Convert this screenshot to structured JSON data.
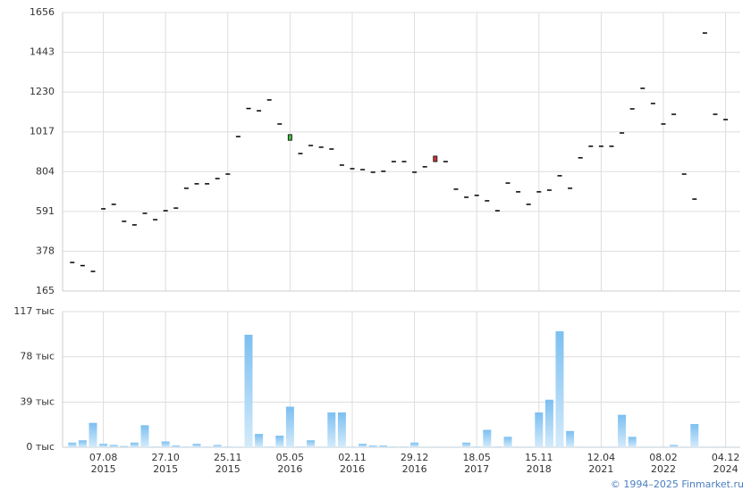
{
  "chart_data": [
    {
      "type": "candlestick",
      "open": [
        318,
        301,
        270,
        605,
        629,
        538,
        519,
        581,
        547,
        595,
        609,
        715,
        739,
        739,
        767,
        791,
        992,
        1142,
        1130,
        1188,
        1059,
        972,
        901,
        944,
        935,
        925,
        839,
        820,
        815,
        801,
        806,
        858,
        858,
        801,
        830,
        887,
        858,
        710,
        667,
        677,
        648,
        595,
        743,
        696,
        629,
        696,
        705,
        782,
        715,
        878,
        940,
        940,
        940,
        1011,
        1140,
        1250,
        1169,
        1059,
        1111,
        791,
        657,
        1546,
        1111,
        1083
      ],
      "close": [
        318,
        301,
        270,
        605,
        629,
        538,
        519,
        581,
        547,
        595,
        609,
        715,
        739,
        739,
        767,
        791,
        992,
        1142,
        1130,
        1188,
        1059,
        1002,
        901,
        944,
        935,
        925,
        839,
        820,
        815,
        801,
        806,
        858,
        858,
        801,
        830,
        858,
        858,
        710,
        667,
        677,
        648,
        595,
        743,
        696,
        629,
        696,
        705,
        782,
        715,
        878,
        940,
        940,
        940,
        1011,
        1140,
        1250,
        1169,
        1059,
        1111,
        791,
        657,
        1546,
        1111,
        1083
      ],
      "ylim": [
        165,
        1656
      ],
      "yticks": [
        165,
        378,
        591,
        804,
        1017,
        1230,
        1443,
        1656
      ],
      "grid": true
    },
    {
      "type": "bar",
      "categories": [
        null,
        null,
        null,
        "07.08\n2015",
        null,
        null,
        null,
        null,
        null,
        "27.10\n2015",
        null,
        null,
        null,
        null,
        null,
        "25.11\n2015",
        null,
        null,
        null,
        null,
        null,
        "05.05\n2016",
        null,
        null,
        null,
        null,
        null,
        "02.11\n2016",
        null,
        null,
        null,
        null,
        null,
        "29.12\n2016",
        null,
        null,
        null,
        null,
        null,
        "18.05\n2017",
        null,
        null,
        null,
        null,
        null,
        "15.11\n2018",
        null,
        null,
        null,
        null,
        null,
        "12.04\n2021",
        null,
        null,
        null,
        null,
        null,
        "08.02\n2022",
        null,
        null,
        null,
        null,
        null,
        "04.12\n2024"
      ],
      "values": [
        4,
        6,
        21,
        3,
        2,
        1,
        4,
        19,
        0.5,
        5,
        1.5,
        0.5,
        3,
        0.5,
        2,
        0.5,
        0.3,
        97,
        11.5,
        0.5,
        10,
        35,
        0.5,
        6,
        0.3,
        30,
        30,
        0.3,
        3,
        1.5,
        1.5,
        0.5,
        0.5,
        4,
        0.3,
        0.3,
        0.3,
        0.3,
        4,
        0.5,
        15,
        0.5,
        9,
        0.3,
        0.3,
        30,
        41,
        100,
        14,
        0.3,
        0.3,
        0.3,
        0.3,
        28,
        9,
        0.3,
        0.3,
        0.3,
        2,
        0.3,
        20,
        0.3,
        0.3,
        0.3
      ],
      "ylim": [
        0,
        117
      ],
      "yticks": [
        {
          "value": 0,
          "label": "0 тыс"
        },
        {
          "value": 39,
          "label": "39 тыс"
        },
        {
          "value": 78,
          "label": "78 тыс"
        },
        {
          "value": 117,
          "label": "117 тыс"
        }
      ],
      "grid": true
    }
  ],
  "footer": "© 1994–2025 Finmarket.ru"
}
